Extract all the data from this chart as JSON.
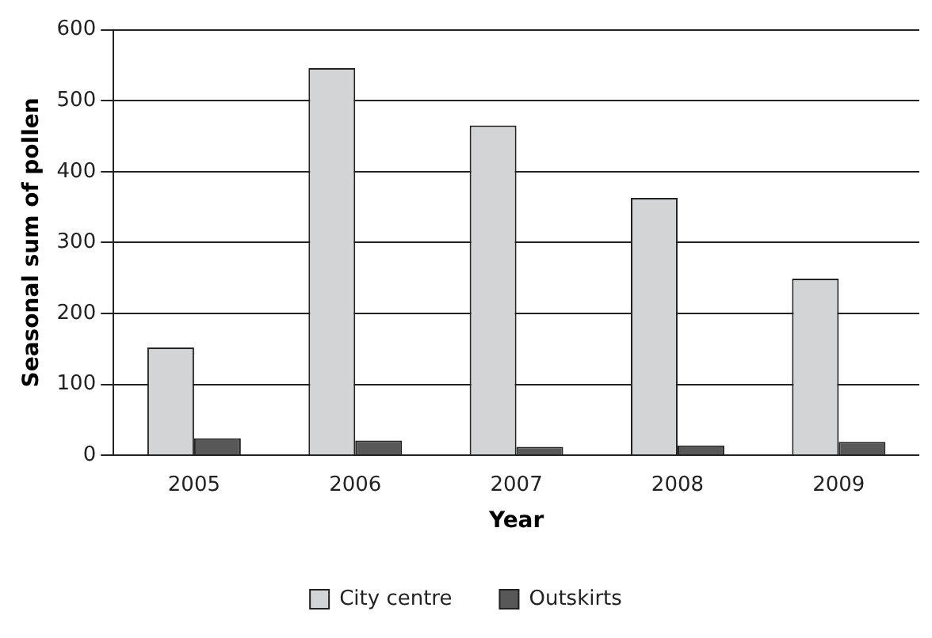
{
  "chart_data": {
    "type": "bar",
    "xlabel": "Year",
    "ylabel": "Seasonal sum of pollen",
    "categories": [
      "2005",
      "2006",
      "2007",
      "2008",
      "2009"
    ],
    "series": [
      {
        "name": "City centre",
        "color": "#d3d4d6",
        "values": [
          152,
          546,
          465,
          363,
          249
        ]
      },
      {
        "name": "Outskirts",
        "color": "#585858",
        "values": [
          24,
          21,
          12,
          14,
          19
        ]
      }
    ],
    "ylim": [
      0,
      600
    ],
    "yticks": [
      0,
      100,
      200,
      300,
      400,
      500,
      600
    ],
    "grid": "y",
    "legend": "bottom"
  }
}
